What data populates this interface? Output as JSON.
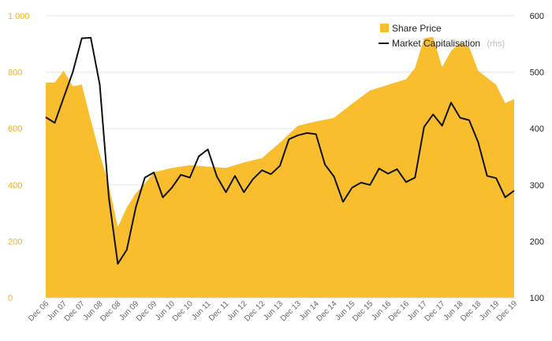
{
  "chart_data": {
    "type": "area",
    "colors": {
      "share_price": "#f9be2e",
      "market_cap": "#111111",
      "left_axis_text": "#f2b11c",
      "grid": "#e6e6e6"
    },
    "left_axis": {
      "ticks": [
        0,
        200,
        400,
        600,
        800,
        1000
      ],
      "tick_labels": [
        "0",
        "200",
        "400",
        "600",
        "800",
        "1 000"
      ],
      "ylim": [
        0,
        1000
      ]
    },
    "right_axis": {
      "ticks": [
        100,
        200,
        300,
        400,
        500,
        600
      ],
      "tick_labels": [
        "100",
        "200",
        "300",
        "400",
        "500",
        "600"
      ],
      "ylim": [
        100,
        600
      ]
    },
    "x_tick_labels": [
      "Dec 06",
      "Jun 07",
      "Dec 07",
      "Jun 08",
      "Dec 08",
      "Jun 09",
      "Dec 09",
      "Jun 10",
      "Dec 10",
      "Jun 11",
      "Dec 11",
      "Jun 12",
      "Dec 12",
      "Jun 13",
      "Dec 13",
      "Jun 14",
      "Dec 14",
      "Jun 15",
      "Dec 15",
      "Jun 16",
      "Dec 16",
      "Jun 17",
      "Dec 17",
      "Jun 18",
      "Dec 18",
      "Jun 19",
      "Dec 19"
    ],
    "legend": {
      "share_price": "Share Price",
      "market_cap": "Market Capitalisation",
      "market_cap_note": "(rhs)"
    },
    "series": [
      {
        "name": "Share Price",
        "axis": "left",
        "points": [
          [
            0,
            763
          ],
          [
            0.5,
            763
          ],
          [
            1.0,
            805
          ],
          [
            1.5,
            750
          ],
          [
            2.0,
            756
          ],
          [
            2.5,
            630
          ],
          [
            3.0,
            510
          ],
          [
            3.5,
            400
          ],
          [
            4.0,
            250
          ],
          [
            4.5,
            320
          ],
          [
            5.0,
            370
          ],
          [
            5.5,
            405
          ],
          [
            6.0,
            445
          ],
          [
            7.0,
            460
          ],
          [
            8.0,
            470
          ],
          [
            9.0,
            465
          ],
          [
            10.0,
            460
          ],
          [
            11.0,
            480
          ],
          [
            12.0,
            495
          ],
          [
            13.0,
            550
          ],
          [
            14.0,
            610
          ],
          [
            15.0,
            625
          ],
          [
            16.0,
            638
          ],
          [
            17.0,
            688
          ],
          [
            18.0,
            735
          ],
          [
            19.0,
            755
          ],
          [
            20.0,
            775
          ],
          [
            20.5,
            815
          ],
          [
            21.0,
            920
          ],
          [
            21.5,
            925
          ],
          [
            22.0,
            818
          ],
          [
            22.5,
            875
          ],
          [
            23.0,
            905
          ],
          [
            23.5,
            890
          ],
          [
            24.0,
            805
          ],
          [
            25.0,
            755
          ],
          [
            25.5,
            690
          ],
          [
            26.0,
            705
          ]
        ]
      },
      {
        "name": "Market Capitalisation",
        "axis": "right",
        "points": [
          [
            0,
            420
          ],
          [
            0.5,
            410
          ],
          [
            1.0,
            455
          ],
          [
            1.5,
            500
          ],
          [
            2.0,
            560
          ],
          [
            2.5,
            561
          ],
          [
            3.0,
            478
          ],
          [
            3.5,
            278
          ],
          [
            4.0,
            160
          ],
          [
            4.5,
            185
          ],
          [
            5.0,
            260
          ],
          [
            5.5,
            313
          ],
          [
            6.0,
            322
          ],
          [
            6.5,
            278
          ],
          [
            7.0,
            295
          ],
          [
            7.5,
            318
          ],
          [
            8.0,
            313
          ],
          [
            8.5,
            351
          ],
          [
            9.0,
            363
          ],
          [
            9.5,
            315
          ],
          [
            10.0,
            287
          ],
          [
            10.5,
            316
          ],
          [
            11.0,
            287
          ],
          [
            11.5,
            310
          ],
          [
            12.0,
            326
          ],
          [
            12.5,
            319
          ],
          [
            13.0,
            334
          ],
          [
            13.5,
            381
          ],
          [
            14.0,
            388
          ],
          [
            14.5,
            392
          ],
          [
            15.0,
            390
          ],
          [
            15.5,
            336
          ],
          [
            16.0,
            315
          ],
          [
            16.5,
            270
          ],
          [
            17.0,
            295
          ],
          [
            17.5,
            304
          ],
          [
            18.0,
            300
          ],
          [
            18.5,
            329
          ],
          [
            19.0,
            320
          ],
          [
            19.5,
            328
          ],
          [
            20.0,
            305
          ],
          [
            20.5,
            313
          ],
          [
            21.0,
            403
          ],
          [
            21.5,
            425
          ],
          [
            22.0,
            405
          ],
          [
            22.5,
            446
          ],
          [
            23.0,
            419
          ],
          [
            23.5,
            415
          ],
          [
            24.0,
            376
          ],
          [
            24.5,
            316
          ],
          [
            25.0,
            312
          ],
          [
            25.5,
            278
          ],
          [
            26.0,
            290
          ]
        ]
      }
    ]
  }
}
